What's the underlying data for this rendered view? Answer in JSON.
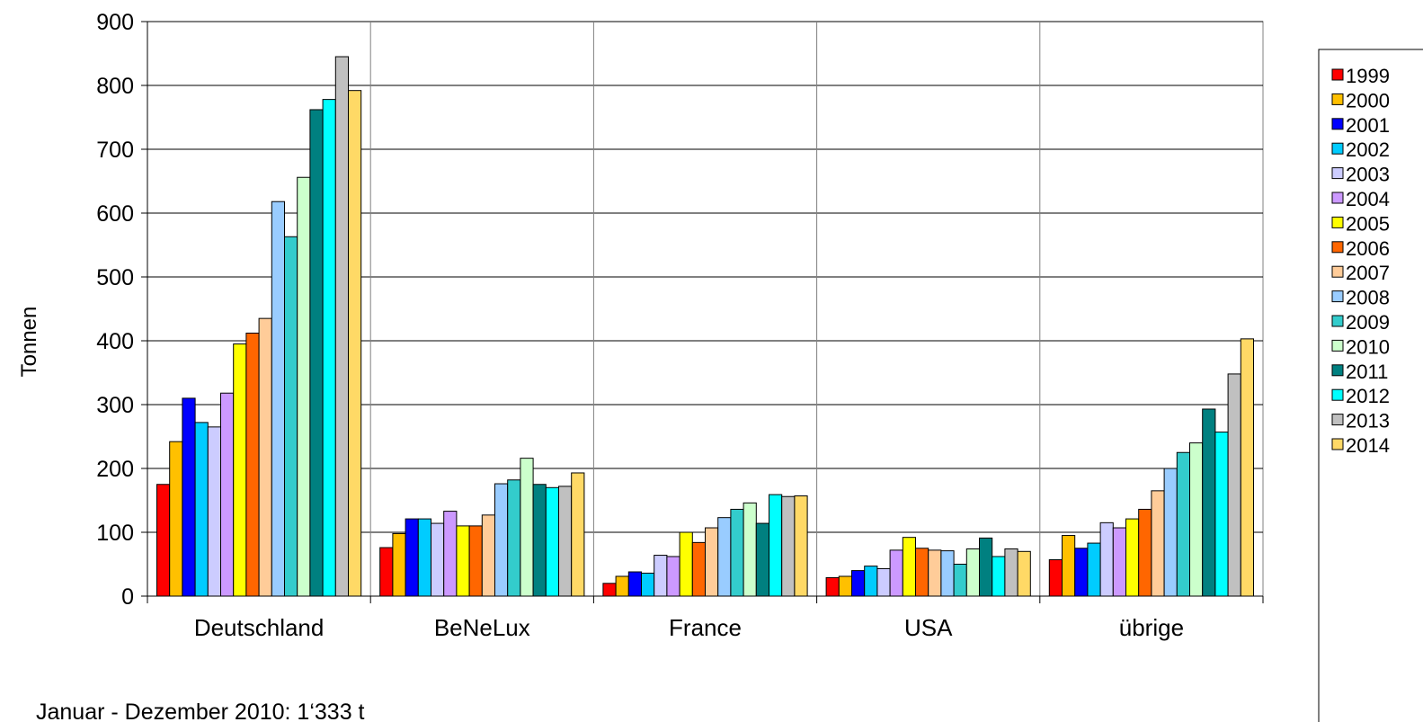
{
  "chart_data": {
    "type": "bar",
    "title": "",
    "xlabel": "",
    "ylabel": "Tonnen",
    "ylim": [
      0,
      900
    ],
    "yticks": [
      0,
      100,
      200,
      300,
      400,
      500,
      600,
      700,
      800,
      900
    ],
    "grid": true,
    "legend_position": "right",
    "categories": [
      "Deutschland",
      "BeNeLux",
      "France",
      "USA",
      "übrige"
    ],
    "series": [
      {
        "name": "1999",
        "color": "#ff0000",
        "values": [
          175,
          76,
          20,
          29,
          57
        ]
      },
      {
        "name": "2000",
        "color": "#ffc000",
        "values": [
          242,
          98,
          31,
          31,
          95
        ]
      },
      {
        "name": "2001",
        "color": "#0000ff",
        "values": [
          310,
          121,
          38,
          40,
          75
        ]
      },
      {
        "name": "2002",
        "color": "#00ccff",
        "values": [
          272,
          121,
          36,
          47,
          83
        ]
      },
      {
        "name": "2003",
        "color": "#ccccff",
        "values": [
          265,
          114,
          64,
          43,
          115
        ]
      },
      {
        "name": "2004",
        "color": "#cc99ff",
        "values": [
          318,
          133,
          62,
          72,
          107
        ]
      },
      {
        "name": "2005",
        "color": "#ffff00",
        "values": [
          395,
          110,
          100,
          92,
          121
        ]
      },
      {
        "name": "2006",
        "color": "#ff6600",
        "values": [
          412,
          110,
          84,
          75,
          136
        ]
      },
      {
        "name": "2007",
        "color": "#ffcc99",
        "values": [
          435,
          127,
          107,
          72,
          165
        ]
      },
      {
        "name": "2008",
        "color": "#99ccff",
        "values": [
          618,
          176,
          123,
          71,
          200
        ]
      },
      {
        "name": "2009",
        "color": "#33cccc",
        "values": [
          563,
          182,
          136,
          50,
          225
        ]
      },
      {
        "name": "2010",
        "color": "#ccffcc",
        "values": [
          656,
          216,
          146,
          74,
          240
        ]
      },
      {
        "name": "2011",
        "color": "#008080",
        "values": [
          762,
          175,
          114,
          91,
          293
        ]
      },
      {
        "name": "2012",
        "color": "#00ffff",
        "values": [
          778,
          170,
          159,
          62,
          257
        ]
      },
      {
        "name": "2013",
        "color": "#c0c0c0",
        "values": [
          845,
          172,
          156,
          74,
          348
        ]
      },
      {
        "name": "2014",
        "color": "#ffd966",
        "values": [
          792,
          193,
          157,
          70,
          403
        ]
      }
    ],
    "annotation": "Januar - Dezember 2010: 1‘333 t"
  }
}
